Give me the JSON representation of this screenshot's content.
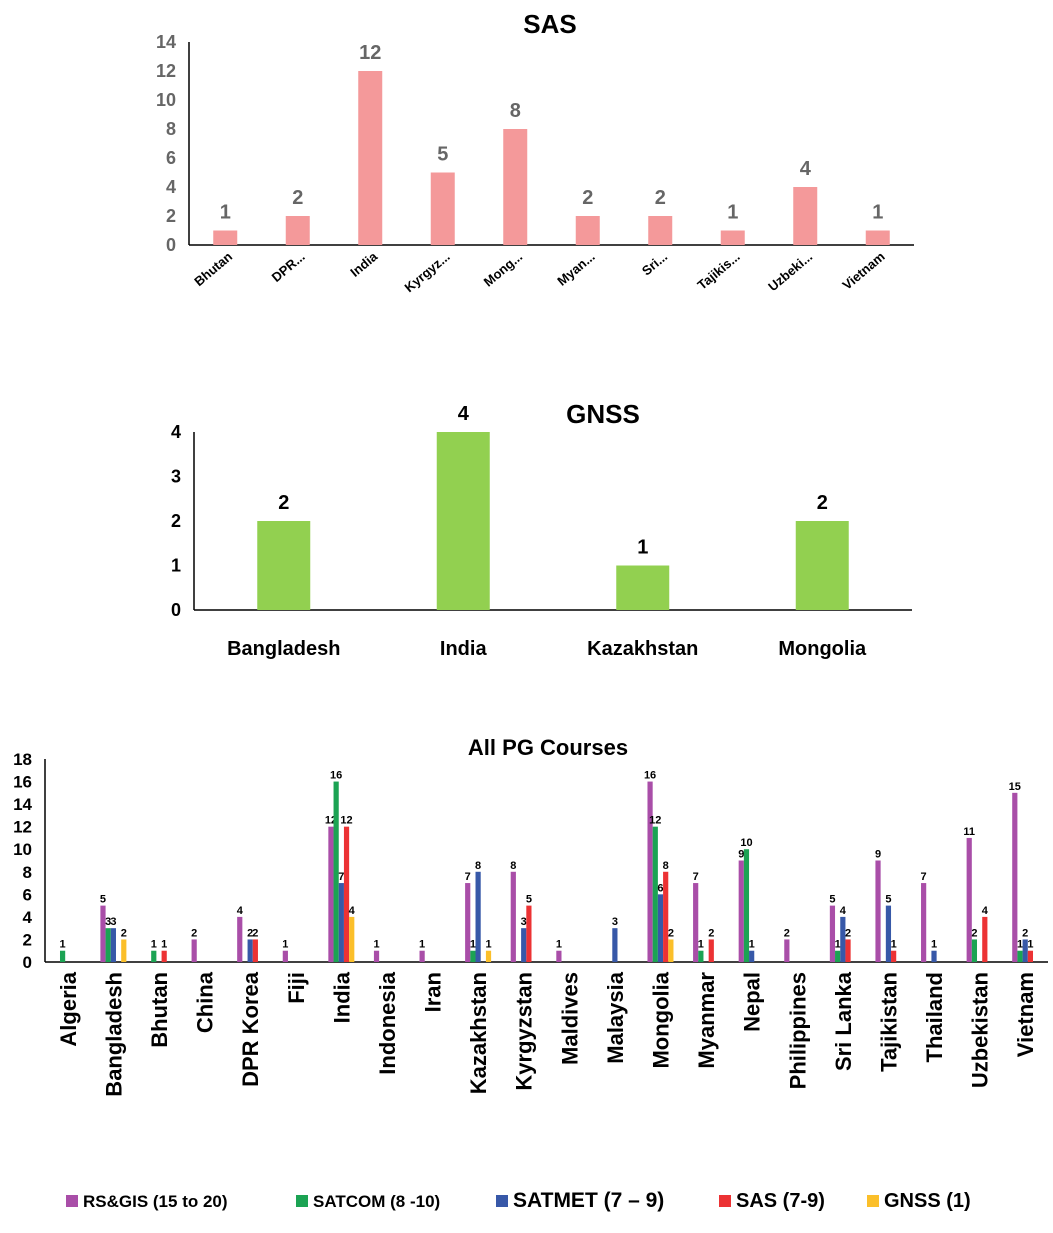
{
  "chart_data": [
    {
      "type": "bar",
      "title": "SAS",
      "categories": [
        "Bhutan",
        "DPR...",
        "India",
        "Kyrgyz...",
        "Mong...",
        "Myan...",
        "Sri...",
        "Tajikis...",
        "Uzbeki...",
        "Vietnam"
      ],
      "values": [
        1,
        2,
        12,
        5,
        8,
        2,
        2,
        1,
        4,
        1
      ],
      "ylim": [
        0,
        14
      ],
      "yticks": [
        "0",
        "2",
        "4",
        "6",
        "8",
        "10",
        "12",
        "14"
      ],
      "color": "#f4999a",
      "data_labels": true,
      "grid": false
    },
    {
      "type": "bar",
      "title": "GNSS",
      "categories": [
        "Bangladesh",
        "India",
        "Kazakhstan",
        "Mongolia"
      ],
      "values": [
        2,
        4,
        1,
        2
      ],
      "ylim": [
        0,
        4
      ],
      "yticks": [
        "0",
        "1",
        "2",
        "3",
        "4"
      ],
      "color": "#92d050",
      "data_labels": true,
      "grid": false
    },
    {
      "type": "bar",
      "title": "All PG Courses",
      "categories": [
        "Algeria",
        "Bangladesh",
        "Bhutan",
        "China",
        "DPR Korea",
        "Fiji",
        "India",
        "Indonesia",
        "Iran",
        "Kazakhstan",
        "Kyrgyzstan",
        "Maldives",
        "Malaysia",
        "Mongolia",
        "Myanmar",
        "Nepal",
        "Philippines",
        "Sri Lanka",
        "Tajikistan",
        "Thailand",
        "Uzbekistan",
        "Vietnam"
      ],
      "series": [
        {
          "name": "RS&GIS (15 to 20)",
          "color": "#a94ea8",
          "values": [
            0,
            5,
            0,
            2,
            4,
            1,
            12,
            1,
            1,
            7,
            8,
            1,
            0,
            16,
            7,
            9,
            2,
            5,
            9,
            7,
            11,
            15
          ]
        },
        {
          "name": "SATCOM (8 -10)",
          "color": "#1ba353",
          "values": [
            1,
            3,
            1,
            0,
            0,
            0,
            16,
            0,
            0,
            1,
            0,
            0,
            0,
            12,
            1,
            10,
            0,
            1,
            0,
            0,
            2,
            1
          ]
        },
        {
          "name": "SATMET (7 – 9)",
          "color": "#3758a8",
          "values": [
            0,
            3,
            0,
            0,
            2,
            0,
            7,
            0,
            0,
            8,
            3,
            0,
            3,
            6,
            0,
            1,
            0,
            4,
            5,
            1,
            0,
            2
          ]
        },
        {
          "name": "SAS (7-9)",
          "color": "#ec3234",
          "values": [
            0,
            0,
            1,
            0,
            2,
            0,
            12,
            0,
            0,
            0,
            5,
            0,
            0,
            8,
            2,
            0,
            0,
            2,
            1,
            0,
            4,
            1
          ]
        },
        {
          "name": "GNSS (1)",
          "color": "#fbbf2a",
          "values": [
            0,
            2,
            0,
            0,
            0,
            0,
            4,
            0,
            0,
            1,
            0,
            0,
            0,
            2,
            0,
            0,
            0,
            0,
            0,
            0,
            0,
            0
          ]
        }
      ],
      "ylim": [
        0,
        18
      ],
      "yticks": [
        "0",
        "2",
        "4",
        "6",
        "8",
        "10",
        "12",
        "14",
        "16",
        "18"
      ],
      "data_labels": true,
      "legend": "bottom",
      "grid": false
    }
  ]
}
